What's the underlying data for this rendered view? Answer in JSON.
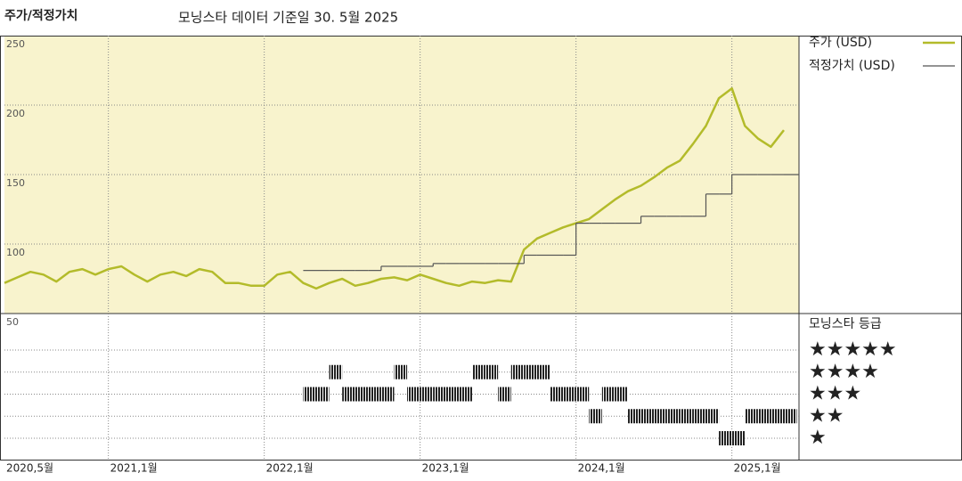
{
  "chart_data": {
    "type": "line",
    "title": "주가/적정가치",
    "subtitle": "모닝스타 데이터 기준일 30. 5월 2025",
    "x": [
      "2020-05",
      "2020-06",
      "2020-07",
      "2020-08",
      "2020-09",
      "2020-10",
      "2020-11",
      "2020-12",
      "2021-01",
      "2021-02",
      "2021-03",
      "2021-04",
      "2021-05",
      "2021-06",
      "2021-07",
      "2021-08",
      "2021-09",
      "2021-10",
      "2021-11",
      "2021-12",
      "2022-01",
      "2022-02",
      "2022-03",
      "2022-04",
      "2022-05",
      "2022-06",
      "2022-07",
      "2022-08",
      "2022-09",
      "2022-10",
      "2022-11",
      "2022-12",
      "2023-01",
      "2023-02",
      "2023-03",
      "2023-04",
      "2023-05",
      "2023-06",
      "2023-07",
      "2023-08",
      "2023-09",
      "2023-10",
      "2023-11",
      "2023-12",
      "2024-01",
      "2024-02",
      "2024-03",
      "2024-04",
      "2024-05",
      "2024-06",
      "2024-07",
      "2024-08",
      "2024-09",
      "2024-10",
      "2024-11",
      "2024-12",
      "2025-01",
      "2025-02",
      "2025-03",
      "2025-04",
      "2025-05"
    ],
    "series": [
      {
        "name": "주가 (USD)",
        "color": "#b3bb2a",
        "values": [
          72,
          76,
          80,
          78,
          73,
          80,
          82,
          78,
          82,
          84,
          78,
          73,
          78,
          80,
          77,
          82,
          80,
          72,
          72,
          70,
          70,
          78,
          80,
          72,
          68,
          72,
          75,
          70,
          72,
          75,
          76,
          74,
          78,
          75,
          72,
          70,
          73,
          72,
          74,
          73,
          96,
          104,
          108,
          112,
          115,
          118,
          125,
          132,
          138,
          142,
          148,
          155,
          160,
          172,
          185,
          205,
          212,
          185,
          176,
          170,
          182
        ]
      },
      {
        "name": "적정가치 (USD)",
        "color": "#555555",
        "step": true,
        "values": [
          null,
          null,
          null,
          null,
          null,
          null,
          null,
          null,
          null,
          null,
          null,
          null,
          null,
          null,
          null,
          null,
          null,
          null,
          null,
          null,
          null,
          null,
          null,
          81,
          81,
          81,
          81,
          81,
          81,
          84,
          84,
          84,
          84,
          86,
          86,
          86,
          86,
          86,
          86,
          86,
          92,
          92,
          92,
          92,
          115,
          115,
          115,
          115,
          115,
          120,
          120,
          120,
          120,
          120,
          136,
          136,
          150,
          150,
          150,
          150,
          150
        ]
      }
    ],
    "rating": {
      "name": "모닝스타 등급",
      "color": "#222222",
      "labels": [
        "★★★★★",
        "★★★★",
        "★★★",
        "★★",
        "★"
      ],
      "levels": [
        5,
        4,
        3,
        2,
        1
      ],
      "values": [
        null,
        null,
        null,
        null,
        null,
        null,
        null,
        null,
        null,
        null,
        null,
        null,
        null,
        null,
        null,
        null,
        null,
        null,
        null,
        null,
        null,
        null,
        null,
        3,
        3,
        4,
        3,
        3,
        3,
        3,
        4,
        3,
        3,
        3,
        3,
        3,
        4,
        4,
        3,
        4,
        4,
        4,
        3,
        3,
        3,
        2,
        3,
        3,
        2,
        2,
        2,
        2,
        2,
        2,
        2,
        1,
        1,
        2,
        2,
        2,
        2
      ]
    },
    "ylim": [
      50,
      250
    ],
    "yticks": [
      50,
      100,
      150,
      200,
      250
    ],
    "xticks": [
      {
        "value": "2020-05",
        "label": "2020,5월"
      },
      {
        "value": "2021-01",
        "label": "2021,1월"
      },
      {
        "value": "2022-01",
        "label": "2022,1월"
      },
      {
        "value": "2023-01",
        "label": "2023,1월"
      },
      {
        "value": "2024-01",
        "label": "2024,1월"
      },
      {
        "value": "2025-01",
        "label": "2025,1월"
      }
    ],
    "grid": true,
    "background": "#f8f3cd"
  }
}
